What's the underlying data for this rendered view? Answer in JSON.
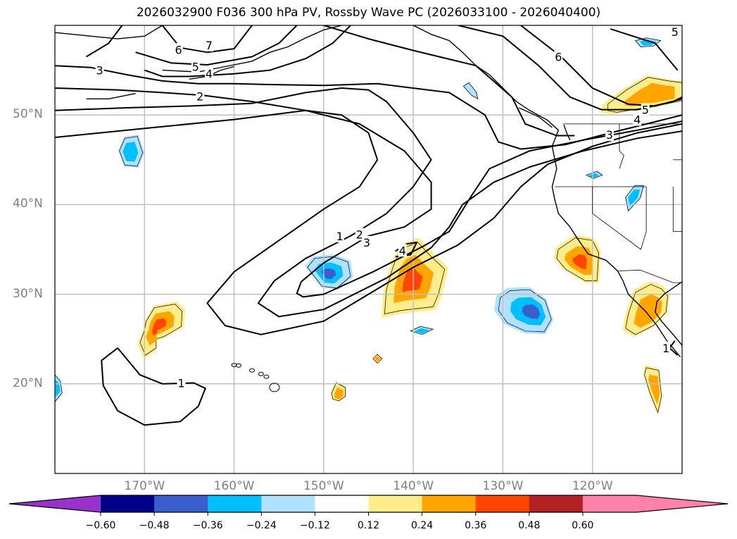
{
  "title": "2026032900 F036 300 hPa PV, Rossby Wave PC (2026033100 - 2026040400)",
  "map": {
    "projection": "PlateCarree",
    "lon_range": [
      -180,
      -110
    ],
    "lat_range": [
      10,
      60
    ],
    "lat_ticks": [
      {
        "value": 50,
        "label": "50°N"
      },
      {
        "value": 40,
        "label": "40°N"
      },
      {
        "value": 30,
        "label": "30°N"
      },
      {
        "value": 20,
        "label": "20°N"
      }
    ],
    "lon_ticks": [
      {
        "value": -170,
        "label": "170°W"
      },
      {
        "value": -160,
        "label": "160°W"
      },
      {
        "value": -150,
        "label": "150°W"
      },
      {
        "value": -140,
        "label": "140°W"
      },
      {
        "value": -130,
        "label": "130°W"
      },
      {
        "value": -120,
        "label": "120°W"
      }
    ],
    "grid_color": "#c0c0c0",
    "contour_field": "300 hPa PV",
    "contour_labels": [
      {
        "text": "7",
        "lon": -162.8,
        "lat": 57.8
      },
      {
        "text": "6",
        "lon": -166.2,
        "lat": 57.3
      },
      {
        "text": "5",
        "lon": -164.3,
        "lat": 55.4
      },
      {
        "text": "4",
        "lon": -162.8,
        "lat": 54.6
      },
      {
        "text": "3",
        "lon": -175.0,
        "lat": 55.0
      },
      {
        "text": "2",
        "lon": -163.8,
        "lat": 52.1
      },
      {
        "text": "6",
        "lon": -123.8,
        "lat": 56.5
      },
      {
        "text": "5",
        "lon": -110.8,
        "lat": 59.3
      },
      {
        "text": "5",
        "lon": -114.1,
        "lat": 50.6
      },
      {
        "text": "4",
        "lon": -115.0,
        "lat": 49.5
      },
      {
        "text": "3",
        "lon": -118.1,
        "lat": 47.8
      },
      {
        "text": "1",
        "lon": -148.2,
        "lat": 36.5
      },
      {
        "text": "2",
        "lon": -146.0,
        "lat": 36.7
      },
      {
        "text": "3",
        "lon": -145.2,
        "lat": 35.8
      },
      {
        "text": "4",
        "lon": -141.2,
        "lat": 34.9
      },
      {
        "text": "1",
        "lon": -165.9,
        "lat": 20.1
      },
      {
        "text": "1",
        "lon": -111.8,
        "lat": 24.0
      }
    ],
    "shading_field": "Rossby Wave PC",
    "anomalies": [
      {
        "name": "pos-anomaly-central",
        "lon": -140.2,
        "lat": 31.5,
        "peak": 0.42
      },
      {
        "name": "neg-anomaly-central",
        "lon": -149.5,
        "lat": 32.2,
        "peak": -0.4
      },
      {
        "name": "pos-anomaly-california",
        "lon": -121.3,
        "lat": 33.5,
        "peak": 0.45
      },
      {
        "name": "neg-anomaly-east-pacific",
        "lon": -126.5,
        "lat": 28.0,
        "peak": -0.42
      },
      {
        "name": "pos-anomaly-baja",
        "lon": -113.5,
        "lat": 27.8,
        "peak": 0.3
      },
      {
        "name": "pos-anomaly-baja-south",
        "lon": -112.9,
        "lat": 19.5,
        "peak": 0.26
      },
      {
        "name": "pos-anomaly-west",
        "lon": -168.5,
        "lat": 26.5,
        "peak": 0.4
      },
      {
        "name": "neg-anomaly-west",
        "lon": -171.7,
        "lat": 45.8,
        "peak": -0.3
      },
      {
        "name": "pos-anomaly-canada",
        "lon": -112.5,
        "lat": 52.3,
        "peak": 0.28
      },
      {
        "name": "neg-anomaly-canada",
        "lon": -113.8,
        "lat": 58.0,
        "peak": -0.25
      },
      {
        "name": "neg-anomaly-nevada",
        "lon": -115.5,
        "lat": 40.8,
        "peak": -0.28
      },
      {
        "name": "neg-anomaly-oregon",
        "lon": -120.0,
        "lat": 43.1,
        "peak": -0.26
      },
      {
        "name": "pos-anomaly-hawaii-east",
        "lon": -148.2,
        "lat": 18.6,
        "peak": 0.28
      },
      {
        "name": "neg-anomaly-south",
        "lon": -139.0,
        "lat": 25.8,
        "peak": -0.27
      },
      {
        "name": "pos-anomaly-small",
        "lon": -144.0,
        "lat": 22.8,
        "peak": 0.25
      },
      {
        "name": "neg-anomaly-alaska",
        "lon": -133.6,
        "lat": 52.9,
        "peak": -0.15
      },
      {
        "name": "neg-anomaly-edge",
        "lon": -179.8,
        "lat": 19.5,
        "peak": -0.3
      }
    ]
  },
  "colorbar": {
    "extend": "both",
    "levels": [
      "−0.60",
      "−0.48",
      "−0.36",
      "−0.24",
      "−0.12",
      "0.12",
      "0.24",
      "0.36",
      "0.48",
      "0.60"
    ],
    "colors": [
      "#9932cc",
      "#00008b",
      "#3a5fcd",
      "#00bfff",
      "#b0e2ff",
      "#ffffff",
      "#ffec8b",
      "#ffa500",
      "#ff4500",
      "#b22222",
      "#ff82ab"
    ]
  }
}
